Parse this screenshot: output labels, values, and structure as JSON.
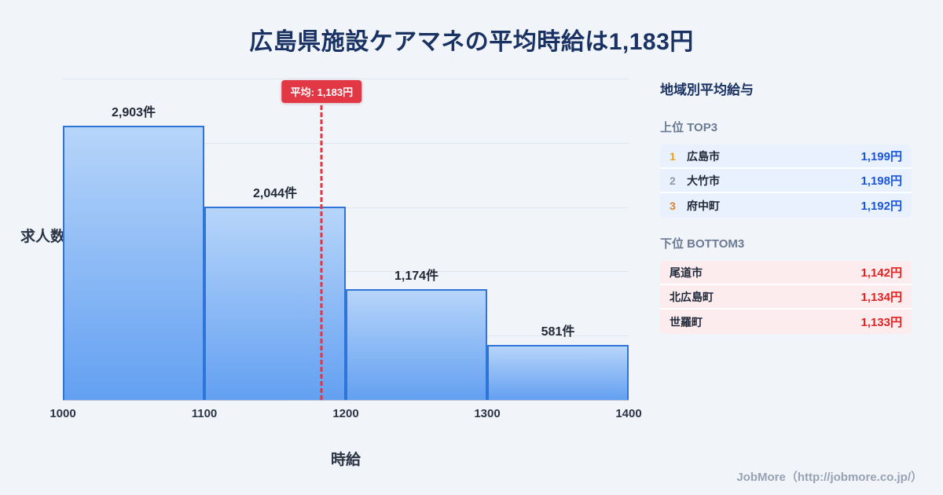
{
  "title": "広島県施設ケアマネの平均時給は1,183円",
  "chart_data": {
    "type": "bar",
    "subtype": "histogram",
    "title": "広島県施設ケアマネの平均時給は1,183円",
    "xlabel": "時給",
    "ylabel": "求人数",
    "x_range": [
      1000,
      1400
    ],
    "x_ticks": [
      "1000",
      "1100",
      "1200",
      "1300",
      "1400"
    ],
    "bins": [
      [
        1000,
        1100
      ],
      [
        1100,
        1200
      ],
      [
        1200,
        1300
      ],
      [
        1300,
        1400
      ]
    ],
    "values": [
      2903,
      2044,
      1174,
      581
    ],
    "bar_labels": [
      "2,903件",
      "2,044件",
      "1,174件",
      "581件"
    ],
    "y_axis_max": 3400,
    "grid": true,
    "average": {
      "value": 1183,
      "label": "平均: 1,183円"
    },
    "colors": {
      "bar_fill_top": "#b7d5fa",
      "bar_fill_bottom": "#63a0f1",
      "bar_border": "#2e74d9",
      "average_line": "#e8333f",
      "title": "#1a3263"
    }
  },
  "sidebar": {
    "title": "地域別平均給与",
    "top_section": {
      "label": "上位 TOP3",
      "rows": [
        {
          "rank": "1",
          "name": "広島市",
          "value": "1,199円"
        },
        {
          "rank": "2",
          "name": "大竹市",
          "value": "1,198円"
        },
        {
          "rank": "3",
          "name": "府中町",
          "value": "1,192円"
        }
      ],
      "rank_colors": [
        "#f0a11c",
        "#8e99a8",
        "#e07f2e"
      ],
      "value_color": "#1a56db",
      "row_bg": "#e8f1fd"
    },
    "bottom_section": {
      "label": "下位 BOTTOM3",
      "rows": [
        {
          "rank": "",
          "name": "尾道市",
          "value": "1,142円"
        },
        {
          "rank": "",
          "name": "北広島町",
          "value": "1,134円"
        },
        {
          "rank": "",
          "name": "世羅町",
          "value": "1,133円"
        }
      ],
      "value_color": "#e02424",
      "row_bg": "#fdeced"
    }
  },
  "footer": {
    "credit": "JobMore（http://jobmore.co.jp/）"
  }
}
